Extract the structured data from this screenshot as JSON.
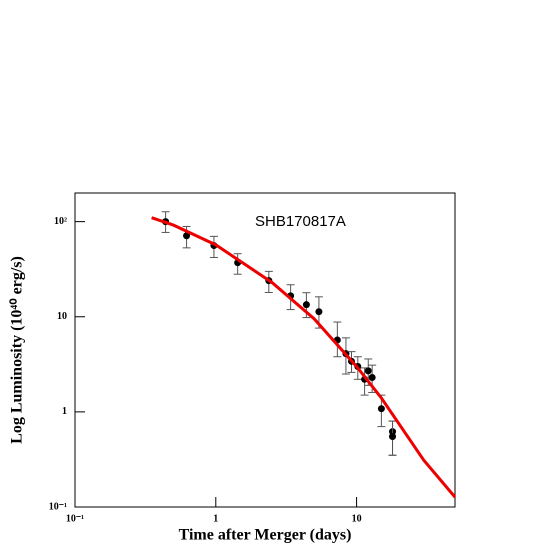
{
  "chart_data": {
    "type": "scatter",
    "annotation": "SHB170817A",
    "x_label": "Time after Merger (days)",
    "y_label": "Log Luminosity (10⁴⁰ erg/s)",
    "log_x": true,
    "log_y": true,
    "xlim": [
      0.1,
      50
    ],
    "ylim": [
      0.1,
      200
    ],
    "xticks": [
      {
        "value": 0.1,
        "label": "10⁻¹"
      },
      1,
      10
    ],
    "yticks": [
      {
        "value": 0.1,
        "label": "10⁻¹"
      },
      1,
      10,
      {
        "value": 100,
        "label": "10²"
      }
    ],
    "series": [
      {
        "type": "errorbar",
        "color": "#000000",
        "x": [
          0.44,
          0.62,
          0.97,
          1.43,
          2.38,
          3.4,
          4.4,
          5.4,
          7.3,
          8.4,
          9.2,
          10.2,
          11.4,
          12.1,
          12.9,
          15,
          18,
          18
        ],
        "values": [
          100,
          71,
          56,
          37,
          24,
          16.6,
          13.4,
          11.3,
          5.7,
          4.1,
          3.4,
          3.0,
          2.2,
          2.7,
          2.3,
          1.08,
          0.62,
          0.55
        ],
        "lower": [
          77,
          53,
          42,
          28,
          18,
          11.9,
          9.8,
          7.6,
          3.8,
          2.5,
          2.6,
          2.2,
          1.5,
          1.9,
          1.6,
          0.7,
          0.35,
          0.35
        ],
        "upper": [
          127,
          89,
          70,
          46,
          30,
          21.7,
          17.9,
          16.2,
          8.8,
          6.0,
          4.3,
          3.8,
          2.9,
          3.6,
          3.1,
          1.5,
          0.8,
          0.8
        ]
      },
      {
        "type": "line",
        "color": "#ee0000",
        "x": [
          0.35,
          0.5,
          1,
          2.5,
          5,
          10,
          15,
          30,
          50
        ],
        "values": [
          110,
          92,
          57,
          23,
          9.5,
          3.0,
          1.4,
          0.31,
          0.127
        ]
      }
    ]
  }
}
